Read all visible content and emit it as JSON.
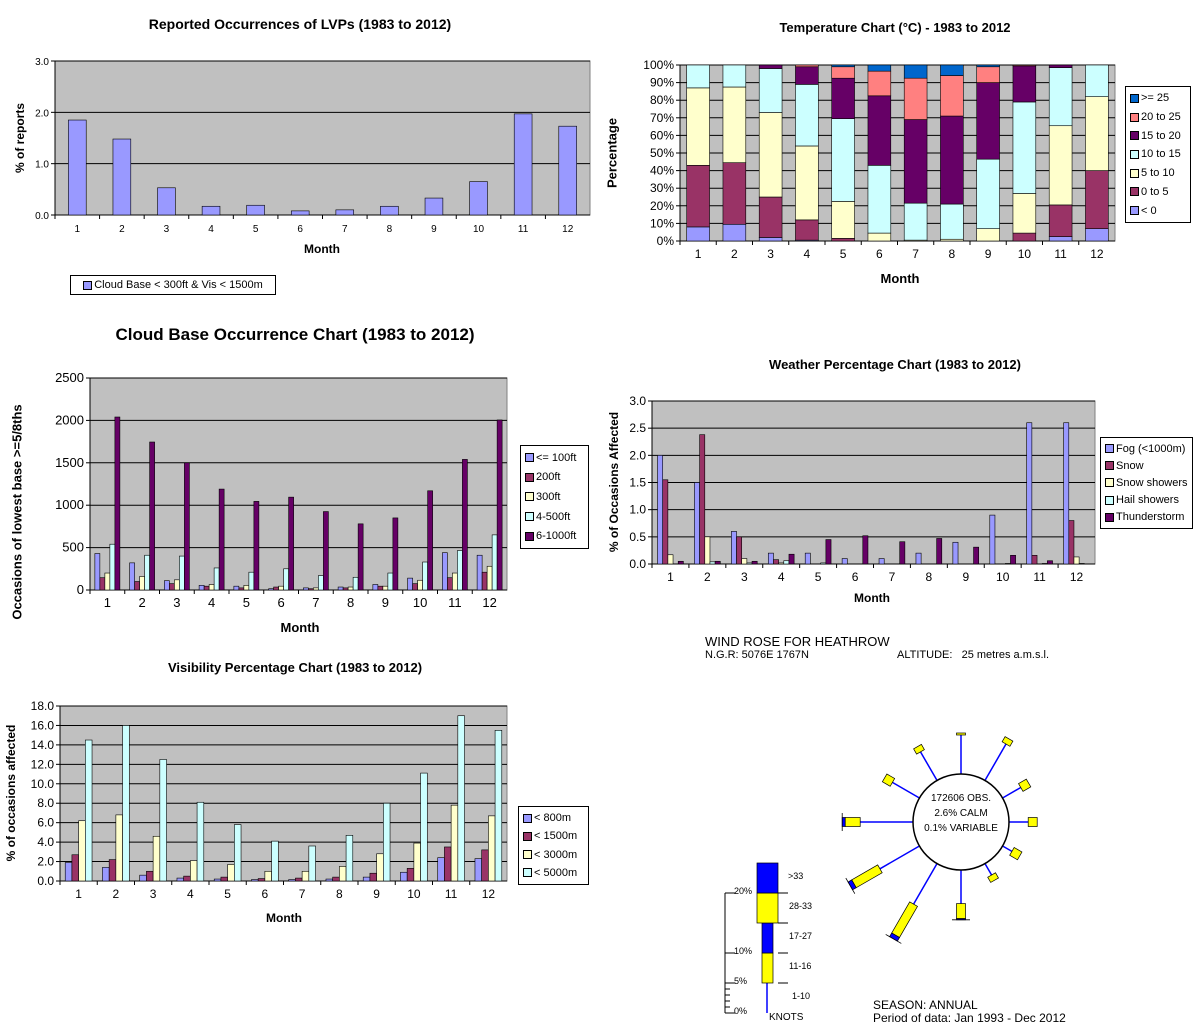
{
  "chart_data": [
    {
      "type": "bar",
      "title": "Reported Occurrences of LVPs (1983 to 2012)",
      "xlabel": "Month",
      "ylabel": "% of reports",
      "categories": [
        "1",
        "2",
        "3",
        "4",
        "5",
        "6",
        "7",
        "8",
        "9",
        "10",
        "11",
        "12"
      ],
      "ylim": [
        0,
        3
      ],
      "yticks": [
        0,
        1,
        2,
        3
      ],
      "stacked": false,
      "legend_position": "bottom-left",
      "series": [
        {
          "name": "Cloud Base < 300ft & Vis < 1500m",
          "color": "#9999ff",
          "values": [
            1.85,
            1.48,
            0.53,
            0.17,
            0.19,
            0.08,
            0.1,
            0.17,
            0.33,
            0.65,
            1.97,
            1.73
          ]
        }
      ]
    },
    {
      "type": "bar",
      "title": "Temperature Chart (°C) - 1983 to 2012",
      "xlabel": "Month",
      "ylabel": "Percentage",
      "categories": [
        "1",
        "2",
        "3",
        "4",
        "5",
        "6",
        "7",
        "8",
        "9",
        "10",
        "11",
        "12"
      ],
      "ylim": [
        0,
        100
      ],
      "yticks": [
        0,
        10,
        20,
        30,
        40,
        50,
        60,
        70,
        80,
        90,
        100
      ],
      "percent": true,
      "stacked": true,
      "legend_position": "right",
      "series": [
        {
          "name": "< 0",
          "color": "#9999ff",
          "values": [
            8,
            9.5,
            2,
            0.5,
            0,
            0,
            0,
            0,
            0,
            0,
            2.5,
            7
          ]
        },
        {
          "name": "0 to 5",
          "color": "#993366",
          "values": [
            35,
            35,
            23,
            11.5,
            1.5,
            0,
            0,
            0,
            0,
            4.5,
            18,
            33
          ]
        },
        {
          "name": "5 to 10",
          "color": "#ffffcc",
          "values": [
            44,
            43,
            48,
            42,
            21,
            4.5,
            0.5,
            1,
            7,
            22.5,
            45,
            42
          ]
        },
        {
          "name": "10 to 15",
          "color": "#ccffff",
          "values": [
            13,
            12.5,
            25,
            35,
            47,
            38.5,
            21,
            20,
            39.5,
            52,
            33,
            18
          ]
        },
        {
          "name": "15 to 20",
          "color": "#660066",
          "values": [
            0,
            0,
            2,
            10,
            23,
            39.5,
            47.5,
            50,
            43.5,
            20.5,
            1.5,
            0
          ]
        },
        {
          "name": "20 to 25",
          "color": "#ff8080",
          "values": [
            0,
            0,
            0,
            1,
            6.5,
            14,
            23.5,
            23,
            9,
            0.5,
            0,
            0
          ]
        },
        {
          "name": ">= 25",
          "color": "#0066cc",
          "values": [
            0,
            0,
            0,
            0,
            1,
            3.5,
            7.5,
            6,
            1,
            0,
            0,
            0
          ]
        }
      ]
    },
    {
      "type": "bar",
      "title": "Cloud Base Occurrence Chart (1983 to 2012)",
      "xlabel": "Month",
      "ylabel": "Occasions of lowest base >=5/8ths",
      "categories": [
        "1",
        "2",
        "3",
        "4",
        "5",
        "6",
        "7",
        "8",
        "9",
        "10",
        "11",
        "12"
      ],
      "ylim": [
        0,
        2500
      ],
      "yticks": [
        0,
        500,
        1000,
        1500,
        2000,
        2500
      ],
      "stacked": false,
      "legend_position": "right",
      "series": [
        {
          "name": "<= 100ft",
          "color": "#9999ff",
          "values": [
            430,
            320,
            110,
            55,
            45,
            15,
            25,
            35,
            65,
            140,
            440,
            410
          ]
        },
        {
          "name": "200ft",
          "color": "#993366",
          "values": [
            145,
            100,
            75,
            45,
            25,
            35,
            15,
            25,
            45,
            75,
            145,
            210
          ]
        },
        {
          "name": "300ft",
          "color": "#ffffcc",
          "values": [
            200,
            160,
            120,
            65,
            55,
            45,
            25,
            35,
            45,
            115,
            200,
            280
          ]
        },
        {
          "name": "4-500ft",
          "color": "#ccffff",
          "values": [
            540,
            410,
            400,
            260,
            210,
            250,
            170,
            150,
            200,
            330,
            465,
            650
          ]
        },
        {
          "name": "6-1000ft",
          "color": "#660066",
          "values": [
            2040,
            1745,
            1500,
            1190,
            1045,
            1095,
            925,
            780,
            850,
            1170,
            1540,
            2005
          ]
        }
      ]
    },
    {
      "type": "bar",
      "title": "Weather Percentage Chart (1983 to 2012)",
      "xlabel": "Month",
      "ylabel": "% of Occasions Affected",
      "categories": [
        "1",
        "2",
        "3",
        "4",
        "5",
        "6",
        "7",
        "8",
        "9",
        "10",
        "11",
        "12"
      ],
      "ylim": [
        0,
        3
      ],
      "yticks": [
        0,
        0.5,
        1,
        1.5,
        2,
        2.5,
        3
      ],
      "stacked": false,
      "legend_position": "right",
      "series": [
        {
          "name": "Fog (<1000m)",
          "color": "#9999ff",
          "values": [
            2.0,
            1.5,
            0.6,
            0.2,
            0.2,
            0.1,
            0.1,
            0.2,
            0.4,
            0.9,
            2.6,
            2.6
          ]
        },
        {
          "name": "Snow",
          "color": "#993366",
          "values": [
            1.55,
            2.38,
            0.5,
            0.08,
            0,
            0,
            0,
            0,
            0,
            0,
            0.16,
            0.8
          ]
        },
        {
          "name": "Snow showers",
          "color": "#ffffcc",
          "values": [
            0.17,
            0.5,
            0.1,
            0.02,
            0,
            0,
            0,
            0,
            0,
            0,
            0,
            0.13
          ]
        },
        {
          "name": "Hail showers",
          "color": "#ccffff",
          "values": [
            0,
            0.04,
            0.02,
            0.06,
            0.02,
            0,
            0,
            0,
            0,
            0.01,
            0.01,
            0.01
          ]
        },
        {
          "name": "Thunderstorm",
          "color": "#660066",
          "values": [
            0.05,
            0.05,
            0.05,
            0.18,
            0.45,
            0.52,
            0.41,
            0.47,
            0.31,
            0.16,
            0.06,
            0
          ]
        }
      ]
    },
    {
      "type": "bar",
      "title": "Visibility Percentage Chart (1983 to 2012)",
      "xlabel": "Month",
      "ylabel": "% of occasions affected",
      "categories": [
        "1",
        "2",
        "3",
        "4",
        "5",
        "6",
        "7",
        "8",
        "9",
        "10",
        "11",
        "12"
      ],
      "ylim": [
        0,
        18
      ],
      "yticks": [
        0,
        2,
        4,
        6,
        8,
        10,
        12,
        14,
        16,
        18
      ],
      "stacked": false,
      "legend_position": "right",
      "series": [
        {
          "name": "< 800m",
          "color": "#9999ff",
          "values": [
            1.9,
            1.4,
            0.6,
            0.3,
            0.2,
            0.15,
            0.15,
            0.2,
            0.4,
            0.9,
            2.4,
            2.3
          ]
        },
        {
          "name": "< 1500m",
          "color": "#993366",
          "values": [
            2.7,
            2.2,
            1.0,
            0.5,
            0.4,
            0.25,
            0.3,
            0.4,
            0.8,
            1.3,
            3.5,
            3.2
          ]
        },
        {
          "name": "< 3000m",
          "color": "#ffffcc",
          "values": [
            6.2,
            6.8,
            4.6,
            2.1,
            1.7,
            1.0,
            1.0,
            1.5,
            2.8,
            3.9,
            7.8,
            6.7
          ]
        },
        {
          "name": "< 5000m",
          "color": "#ccffff",
          "values": [
            14.5,
            16.0,
            12.5,
            8.1,
            5.8,
            4.1,
            3.6,
            4.7,
            8.0,
            11.1,
            17.0,
            15.5
          ]
        }
      ]
    }
  ],
  "wind_rose": {
    "title": "WIND ROSE FOR HEATHROW",
    "ngr": "N.G.R: 5076E 1767N",
    "altitude": "ALTITUDE:   25 metres a.m.s.l.",
    "obs": "172606 OBS.",
    "calm": "2.6% CALM",
    "variable": "0.1% VARIABLE",
    "season": "SEASON: ANNUAL",
    "period": "Period of data: Jan 1993 - Dec 2012",
    "scale_labels": [
      "20%",
      "10%",
      "5%",
      "0%"
    ],
    "speed_labels": [
      ">33",
      "28-33",
      "17-27",
      "11-16",
      "1-10"
    ],
    "units": "KNOTS",
    "colors": {
      "line": "#0000ff",
      "mid": "#ffff00",
      "strong": "#0000ff"
    },
    "directions": [
      {
        "deg": 0,
        "total_pct": 6.8,
        "mid_pct": 0.3,
        "strong_pct": 0
      },
      {
        "deg": 30,
        "total_pct": 8.0,
        "mid_pct": 1.0,
        "strong_pct": 0
      },
      {
        "deg": 60,
        "total_pct": 5.0,
        "mid_pct": 1.5,
        "strong_pct": 0
      },
      {
        "deg": 90,
        "total_pct": 4.7,
        "mid_pct": 1.5,
        "strong_pct": 0
      },
      {
        "deg": 120,
        "total_pct": 3.3,
        "mid_pct": 1.5,
        "strong_pct": 0
      },
      {
        "deg": 150,
        "total_pct": 3.2,
        "mid_pct": 1.0,
        "strong_pct": 0
      },
      {
        "deg": 180,
        "total_pct": 8.3,
        "mid_pct": 2.5,
        "strong_pct": 0.2
      },
      {
        "deg": 210,
        "total_pct": 14.5,
        "mid_pct": 6.0,
        "strong_pct": 0.7
      },
      {
        "deg": 240,
        "total_pct": 13.3,
        "mid_pct": 5.0,
        "strong_pct": 0.7
      },
      {
        "deg": 270,
        "total_pct": 11.8,
        "mid_pct": 2.5,
        "strong_pct": 0.5
      },
      {
        "deg": 300,
        "total_pct": 6.7,
        "mid_pct": 1.5,
        "strong_pct": 0
      },
      {
        "deg": 330,
        "total_pct": 6.5,
        "mid_pct": 1.0,
        "strong_pct": 0
      }
    ]
  }
}
